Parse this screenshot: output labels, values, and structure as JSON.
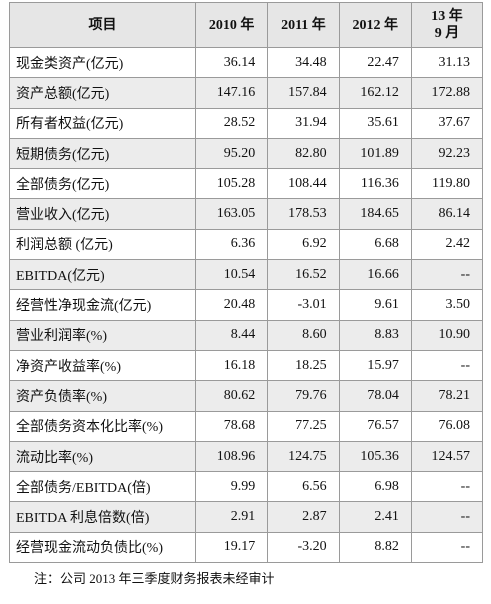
{
  "table": {
    "header": [
      "项目",
      "2010 年",
      "2011 年",
      "2012 年",
      "13 年\n9 月"
    ],
    "rows": [
      [
        "现金类资产(亿元)",
        "36.14",
        "34.48",
        "22.47",
        "31.13"
      ],
      [
        "资产总额(亿元)",
        "147.16",
        "157.84",
        "162.12",
        "172.88"
      ],
      [
        "所有者权益(亿元)",
        "28.52",
        "31.94",
        "35.61",
        "37.67"
      ],
      [
        "短期债务(亿元)",
        "95.20",
        "82.80",
        "101.89",
        "92.23"
      ],
      [
        "全部债务(亿元)",
        "105.28",
        "108.44",
        "116.36",
        "119.80"
      ],
      [
        "营业收入(亿元)",
        "163.05",
        "178.53",
        "184.65",
        "86.14"
      ],
      [
        "利润总额 (亿元)",
        "6.36",
        "6.92",
        "6.68",
        "2.42"
      ],
      [
        "EBITDA(亿元)",
        "10.54",
        "16.52",
        "16.66",
        "--"
      ],
      [
        "经营性净现金流(亿元)",
        "20.48",
        "-3.01",
        "9.61",
        "3.50"
      ],
      [
        "营业利润率(%)",
        "8.44",
        "8.60",
        "8.83",
        "10.90"
      ],
      [
        "净资产收益率(%)",
        "16.18",
        "18.25",
        "15.97",
        "--"
      ],
      [
        "资产负债率(%)",
        "80.62",
        "79.76",
        "78.04",
        "78.21"
      ],
      [
        "全部债务资本化比率(%)",
        "78.68",
        "77.25",
        "76.57",
        "76.08"
      ],
      [
        "流动比率(%)",
        "108.96",
        "124.75",
        "105.36",
        "124.57"
      ],
      [
        "全部债务/EBITDA(倍)",
        "9.99",
        "6.56",
        "6.98",
        "--"
      ],
      [
        "EBITDA 利息倍数(倍)",
        "2.91",
        "2.87",
        "2.41",
        "--"
      ],
      [
        "经营现金流动负债比(%)",
        "19.17",
        "-3.20",
        "8.82",
        "--"
      ]
    ],
    "note": "注：公司 2013 年三季度财务报表未经审计"
  }
}
